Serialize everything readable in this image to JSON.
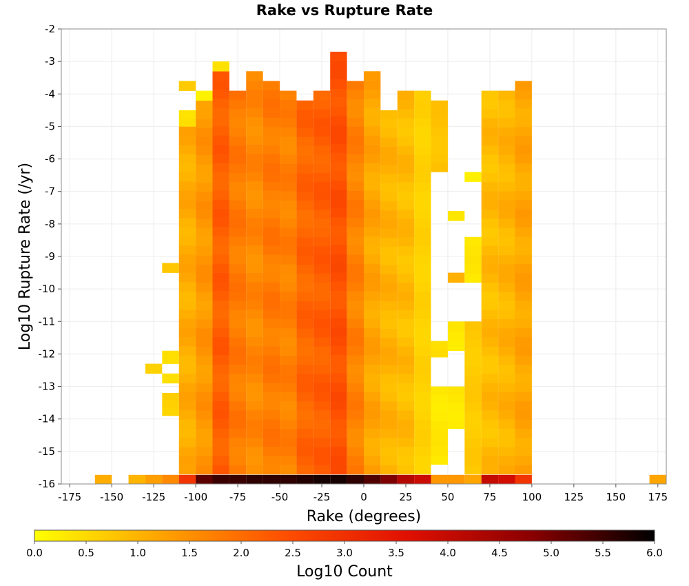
{
  "chart_data": {
    "type": "heatmap",
    "title": "Rake vs Rupture Rate",
    "xlabel": "Rake (degrees)",
    "ylabel": "Log10 Rupture Rate (/yr)",
    "xlim": [
      -180,
      180
    ],
    "ylim": [
      -16,
      -2
    ],
    "x_ticks": [
      "-175",
      "-150",
      "-125",
      "-100",
      "-75",
      "-50",
      "-25",
      "0",
      "25",
      "50",
      "75",
      "100",
      "125",
      "150",
      "175"
    ],
    "y_ticks": [
      "-2",
      "-3",
      "-4",
      "-5",
      "-6",
      "-7",
      "-8",
      "-9",
      "-10",
      "-11",
      "-12",
      "-13",
      "-14",
      "-15",
      "-16"
    ],
    "x_bin_width_deg": 10,
    "y_bin_width": 0.28,
    "grid": true,
    "colorbar": {
      "label": "Log10 Count",
      "range": [
        0,
        6
      ],
      "ticks": [
        "0.0",
        "0.5",
        "1.0",
        "1.5",
        "2.0",
        "2.5",
        "3.0",
        "3.5",
        "4.0",
        "4.5",
        "5.0",
        "5.5",
        "6.0"
      ],
      "colors": [
        "#ffff00",
        "#ffa500",
        "#ff5000",
        "#e01000",
        "#8b0000",
        "#000000"
      ]
    },
    "rake_bins": [
      -155,
      -135,
      -125,
      -115,
      -105,
      -95,
      -85,
      -75,
      -65,
      -55,
      -45,
      -35,
      -25,
      -15,
      -5,
      5,
      15,
      25,
      35,
      45,
      55,
      65,
      75,
      85,
      95,
      175
    ],
    "columns": {
      "-155": {
        "bottom": 1.1
      },
      "-135": {
        "bottom": 1.0
      },
      "-125": {
        "bottom": 1.3
      },
      "-115": {
        "bottom": 1.6,
        "segments": [
          {
            "from": -13.9,
            "to": -13.2,
            "value": 0.6
          },
          {
            "from": -12.9,
            "to": -12.6,
            "value": 0.4
          },
          {
            "from": -12.3,
            "to": -11.9,
            "value": 0.5
          },
          {
            "from": -9.5,
            "to": -9.2,
            "value": 0.7
          }
        ]
      },
      "-125r": {
        "segments": [
          {
            "from": -12.6,
            "to": -12.3,
            "value": 0.6
          }
        ]
      },
      "-105": {
        "bottom": 2.9,
        "segments": [
          {
            "from": -15.7,
            "to": -5.0,
            "value": 1.1
          },
          {
            "from": -5.0,
            "to": -4.5,
            "value": 0.4
          },
          {
            "from": -3.9,
            "to": -3.6,
            "value": 0.7
          }
        ]
      },
      "-95": {
        "bottom": 5.2,
        "segments": [
          {
            "from": -15.7,
            "to": -4.2,
            "value": 1.4
          },
          {
            "from": -4.2,
            "to": -3.9,
            "value": 0.2
          }
        ]
      },
      "-85": {
        "bottom": 5.5,
        "segments": [
          {
            "from": -15.7,
            "to": -3.3,
            "value": 2.2
          },
          {
            "from": -3.3,
            "to": -3.0,
            "value": 0.4
          }
        ]
      },
      "-75": {
        "bottom": 5.5,
        "segments": [
          {
            "from": -15.7,
            "to": -3.9,
            "value": 1.8
          }
        ]
      },
      "-65": {
        "bottom": 5.6,
        "segments": [
          {
            "from": -15.7,
            "to": -3.3,
            "value": 1.6
          }
        ]
      },
      "-55": {
        "bottom": 5.6,
        "segments": [
          {
            "from": -15.7,
            "to": -3.6,
            "value": 1.8
          }
        ]
      },
      "-45": {
        "bottom": 5.6,
        "segments": [
          {
            "from": -15.7,
            "to": -3.9,
            "value": 1.7
          }
        ]
      },
      "-35": {
        "bottom": 5.7,
        "segments": [
          {
            "from": -15.7,
            "to": -4.2,
            "value": 2.1
          }
        ]
      },
      "-25": {
        "bottom": 5.8,
        "segments": [
          {
            "from": -15.7,
            "to": -3.9,
            "value": 2.2
          }
        ]
      },
      "-15": {
        "bottom": 5.8,
        "segments": [
          {
            "from": -15.7,
            "to": -2.7,
            "value": 2.4
          }
        ]
      },
      "-5": {
        "bottom": 5.6,
        "segments": [
          {
            "from": -15.7,
            "to": -3.6,
            "value": 1.7
          }
        ]
      },
      "5": {
        "bottom": 5.3,
        "segments": [
          {
            "from": -15.7,
            "to": -3.3,
            "value": 1.2
          }
        ]
      },
      "15": {
        "bottom": 4.9,
        "segments": [
          {
            "from": -15.7,
            "to": -4.5,
            "value": 1.0
          }
        ]
      },
      "25": {
        "bottom": 4.2,
        "segments": [
          {
            "from": -15.7,
            "to": -3.9,
            "value": 0.9
          }
        ]
      },
      "35": {
        "bottom": 3.9,
        "segments": [
          {
            "from": -15.7,
            "to": -3.9,
            "value": 0.6
          }
        ]
      },
      "45": {
        "bottom": 1.4,
        "segments": [
          {
            "from": -15.4,
            "to": -13.0,
            "value": 0.3
          },
          {
            "from": -12.1,
            "to": -11.6,
            "value": 0.5
          },
          {
            "from": -6.4,
            "to": -4.2,
            "value": 0.8
          }
        ]
      },
      "55": {
        "bottom": 1.4,
        "segments": [
          {
            "from": -14.3,
            "to": -13.0,
            "value": 0.3
          },
          {
            "from": -11.9,
            "to": -11.0,
            "value": 0.3
          },
          {
            "from": -9.8,
            "to": -9.5,
            "value": 1.2
          },
          {
            "from": -7.9,
            "to": -7.6,
            "value": 0.4
          }
        ]
      },
      "65": {
        "bottom": 1.2,
        "segments": [
          {
            "from": -15.7,
            "to": -11.0,
            "value": 0.7
          },
          {
            "from": -9.8,
            "to": -8.4,
            "value": 0.3
          },
          {
            "from": -6.7,
            "to": -6.4,
            "value": 0.2
          }
        ]
      },
      "75": {
        "bottom": 4.0,
        "segments": [
          {
            "from": -15.7,
            "to": -3.9,
            "value": 0.9
          }
        ]
      },
      "85": {
        "bottom": 3.8,
        "segments": [
          {
            "from": -15.7,
            "to": -3.9,
            "value": 1.0
          }
        ]
      },
      "95": {
        "bottom": 2.9,
        "segments": [
          {
            "from": -15.7,
            "to": -3.6,
            "value": 1.2
          }
        ]
      },
      "175": {
        "bottom": 1.2
      }
    }
  }
}
